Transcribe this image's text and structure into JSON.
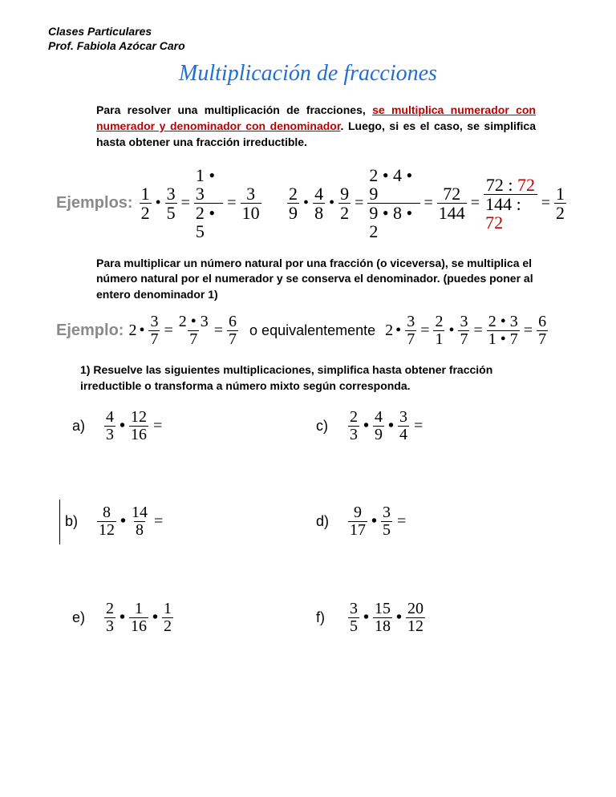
{
  "header": {
    "line1": "Clases Particulares",
    "line2": "Prof. Fabiola Azócar Caro"
  },
  "title": "Multiplicación de fracciones",
  "intro": {
    "pre": "Para resolver una multiplicación de fracciones, ",
    "rule": "se multiplica numerador con numerador y denominador con denominador",
    "post": ". Luego, si es el caso, se simplifica hasta obtener una fracción irreductible."
  },
  "labels": {
    "ejemplos": "Ejemplos:",
    "ejemplo": "Ejemplo:",
    "equiv": "o equivalentemente"
  },
  "ex1": {
    "a": {
      "f1": [
        "1",
        "2"
      ],
      "f2": [
        "3",
        "5"
      ],
      "s1": [
        "1 • 3",
        "2 • 5"
      ],
      "r": [
        "3",
        "10"
      ]
    },
    "b": {
      "f1": [
        "2",
        "9"
      ],
      "f2": [
        "4",
        "8"
      ],
      "f3": [
        "9",
        "2"
      ],
      "s1": [
        "2 • 4 • 9",
        "9 • 8 • 2"
      ],
      "s2": [
        "72",
        "144"
      ],
      "s3": [
        "72 : ",
        "144 : "
      ],
      "s3r": "72",
      "r": [
        "1",
        "2"
      ]
    }
  },
  "para2": "Para multiplicar un número natural por una fracción (o viceversa), se multiplica el número natural por el numerador y se conserva el denominador. (puedes poner al entero denominador 1)",
  "ex2": {
    "left": {
      "whole": "2",
      "f1": [
        "3",
        "7"
      ],
      "s1": [
        "2 • 3",
        "7"
      ],
      "r": [
        "6",
        "7"
      ]
    },
    "right": {
      "whole": "2",
      "f1": [
        "3",
        "7"
      ],
      "f2": [
        "2",
        "1"
      ],
      "f3": [
        "3",
        "7"
      ],
      "s1": [
        "2 • 3",
        "1 • 7"
      ],
      "r": [
        "6",
        "7"
      ]
    }
  },
  "question": "1)  Resuelve las siguientes multiplicaciones, simplifica hasta obtener fracción irreductible o transforma a número mixto según corresponda.",
  "problems": {
    "a": {
      "label": "a)",
      "fr": [
        [
          "4",
          "3"
        ],
        [
          "12",
          "16"
        ]
      ],
      "eq": true
    },
    "c": {
      "label": "c)",
      "fr": [
        [
          "2",
          "3"
        ],
        [
          "4",
          "9"
        ],
        [
          "3",
          "4"
        ]
      ],
      "eq": true
    },
    "b": {
      "label": "b)",
      "fr": [
        [
          "8",
          "12"
        ],
        [
          "14",
          "8"
        ]
      ],
      "eq": true,
      "bar": true
    },
    "d": {
      "label": "d)",
      "fr": [
        [
          "9",
          "17"
        ],
        [
          "3",
          "5"
        ]
      ],
      "eq": true
    },
    "e": {
      "label": "e)",
      "fr": [
        [
          "2",
          "3"
        ],
        [
          "1",
          "16"
        ],
        [
          "1",
          "2"
        ]
      ],
      "eq": false
    },
    "f": {
      "label": "f)",
      "fr": [
        [
          "3",
          "5"
        ],
        [
          "15",
          "18"
        ],
        [
          "20",
          "12"
        ]
      ],
      "eq": false
    }
  }
}
